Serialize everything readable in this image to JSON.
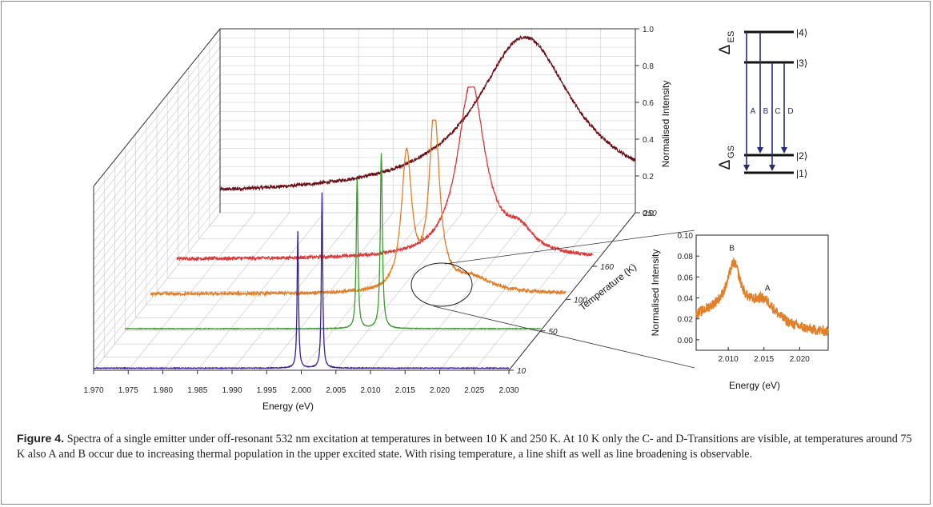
{
  "figure": {
    "label": "Figure 4.",
    "caption": "Spectra of a single emitter under off-resonant 532 nm excitation at temperatures in between 10 K and 250 K. At 10 K only the C- and D-Transitions are visible, at temperatures around 75 K also A and B occur due to increasing thermal population in the upper excited state. With rising temperature, a line shift as well as line broadening is observable."
  },
  "chart_data": [
    {
      "type": "line",
      "projection": "3d-waterfall",
      "xlabel": "Energy (eV)",
      "ylabel": "Temperature (K)",
      "zlabel": "Normalised Intensity",
      "x_ticks": [
        "1.970",
        "1.975",
        "1.980",
        "1.985",
        "1.990",
        "1.995",
        "2.000",
        "2.005",
        "2.010",
        "2.015",
        "2.020",
        "2.025",
        "2.030"
      ],
      "x_range": [
        1.97,
        2.03
      ],
      "temperature_ticks": [
        "10",
        "50",
        "100",
        "160",
        "250"
      ],
      "z_ticks": [
        "0.0",
        "0.2",
        "0.4",
        "0.6",
        "0.8",
        "1.0"
      ],
      "z_range": [
        0,
        1.0
      ],
      "grid": true,
      "series": [
        {
          "temperature": 10,
          "color": "#3b1e9a",
          "lines": [
            {
              "center": 1.9995,
              "width": 0.00012,
              "height": 0.78
            },
            {
              "center": 2.003,
              "width": 0.00012,
              "height": 1.0
            }
          ],
          "baseline": 0.012
        },
        {
          "temperature": 50,
          "color": "#3d9a2e",
          "lines": [
            {
              "center": 2.0035,
              "width": 0.00015,
              "height": 0.85
            },
            {
              "center": 2.007,
              "width": 0.00018,
              "height": 1.0
            }
          ],
          "baseline": 0.012
        },
        {
          "temperature": 100,
          "color": "#e0802a",
          "lines": [
            {
              "center": 2.007,
              "width": 0.0009,
              "height": 0.77
            },
            {
              "center": 2.011,
              "width": 0.0009,
              "height": 1.0
            },
            {
              "center": 2.0165,
              "width": 0.0035,
              "height": 0.08
            }
          ],
          "baseline": 0.03
        },
        {
          "temperature": 160,
          "color": "#d93a3a",
          "lines": [
            {
              "center": 2.0125,
              "width": 0.0024,
              "height": 1.0
            },
            {
              "center": 2.0195,
              "width": 0.0025,
              "height": 0.12
            }
          ],
          "baseline": 0.04
        },
        {
          "temperature": 250,
          "color": "#6b0f16",
          "lines": [
            {
              "center": 2.014,
              "width": 0.0085,
              "height": 0.9
            }
          ],
          "baseline": 0.1
        }
      ]
    },
    {
      "type": "line",
      "inset": true,
      "xlabel": "Energy (eV)",
      "ylabel": "Normalised Intensity",
      "xlim": [
        2.0055,
        2.024
      ],
      "ylim": [
        -0.01,
        0.1
      ],
      "x_ticks": [
        "2.010",
        "2.015",
        "2.020"
      ],
      "y_ticks": [
        "0.00",
        "0.02",
        "0.04",
        "0.06",
        "0.08",
        "0.10"
      ],
      "annotations": [
        {
          "text": "B",
          "x": 2.0105,
          "y": 0.085
        },
        {
          "text": "A",
          "x": 2.0155,
          "y": 0.047
        }
      ],
      "series": [
        {
          "color": "#e0802a",
          "peaks": [
            {
              "center": 2.0108,
              "width": 0.0011,
              "height": 0.043
            },
            {
              "center": 2.015,
              "width": 0.0022,
              "height": 0.021
            },
            {
              "center": 2.009,
              "width": 0.006,
              "height": 0.025
            }
          ],
          "baseline": 0.003
        }
      ]
    },
    {
      "type": "diagram",
      "levels": [
        {
          "label": "|4⟩"
        },
        {
          "label": "|3⟩"
        },
        {
          "label": "|2⟩"
        },
        {
          "label": "|1⟩"
        }
      ],
      "splittings": [
        {
          "label": "Δ",
          "sub": "ES"
        },
        {
          "label": "Δ",
          "sub": "GS"
        }
      ],
      "transitions": [
        "A",
        "B",
        "C",
        "D"
      ]
    }
  ]
}
